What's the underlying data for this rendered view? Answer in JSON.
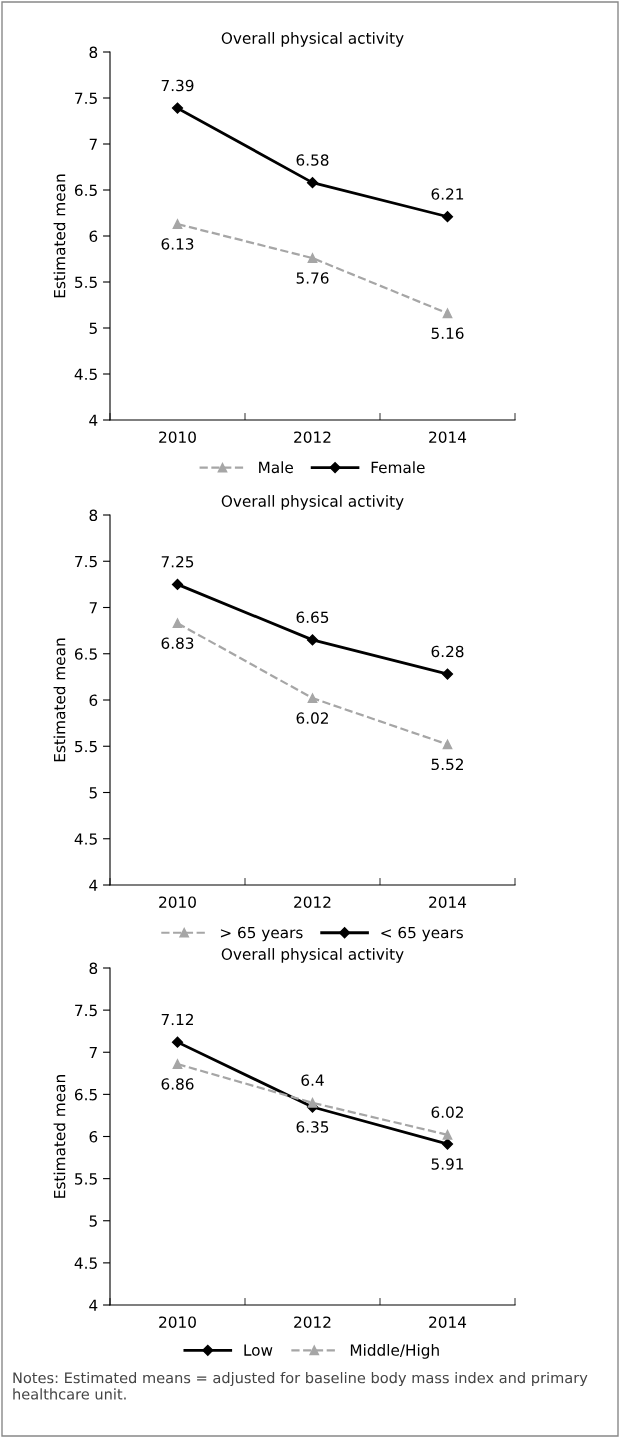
{
  "chart_data": [
    {
      "type": "line",
      "title": "Overall physical activity",
      "ylabel": "Estimated mean",
      "categories": [
        "2010",
        "2012",
        "2014"
      ],
      "ylim": [
        4,
        8
      ],
      "yticks": [
        4,
        4.5,
        5,
        5.5,
        6,
        6.5,
        7,
        7.5,
        8
      ],
      "data_labels": true,
      "legend": "bottom",
      "grid": false,
      "series": [
        {
          "name": "Male",
          "color": "#a6a6a6",
          "values": [
            6.13,
            5.76,
            5.16
          ],
          "marker": "triangle",
          "line_style": "dashed"
        },
        {
          "name": "Female",
          "color": "#000000",
          "values": [
            7.39,
            6.58,
            6.21
          ],
          "marker": "diamond",
          "line_style": "solid"
        }
      ]
    },
    {
      "type": "line",
      "title": "Overall physical activity",
      "ylabel": "Estimated mean",
      "categories": [
        "2010",
        "2012",
        "2014"
      ],
      "ylim": [
        4,
        8
      ],
      "yticks": [
        4,
        4.5,
        5,
        5.5,
        6,
        6.5,
        7,
        7.5,
        8
      ],
      "data_labels": true,
      "legend": "bottom",
      "grid": false,
      "series": [
        {
          "name": "> 65 years",
          "color": "#a6a6a6",
          "values": [
            6.83,
            6.02,
            5.52
          ],
          "marker": "triangle",
          "line_style": "dashed"
        },
        {
          "name": "< 65 years",
          "color": "#000000",
          "values": [
            7.25,
            6.65,
            6.28
          ],
          "marker": "diamond",
          "line_style": "solid"
        }
      ]
    },
    {
      "type": "line",
      "title": "Overall physical activity",
      "ylabel": "Estimated mean",
      "categories": [
        "2010",
        "2012",
        "2014"
      ],
      "ylim": [
        4,
        8
      ],
      "yticks": [
        4,
        4.5,
        5,
        5.5,
        6,
        6.5,
        7,
        7.5,
        8
      ],
      "data_labels": true,
      "legend": "bottom",
      "grid": false,
      "annotations": [
        "Notes: Estimated means = adjusted for baseline body mass index and primary healthcare unit."
      ],
      "series": [
        {
          "name": "Low",
          "color": "#000000",
          "values": [
            7.12,
            6.35,
            5.91
          ],
          "marker": "diamond",
          "line_style": "solid"
        },
        {
          "name": "Middle/High",
          "color": "#a6a6a6",
          "values": [
            6.86,
            6.4,
            6.02
          ],
          "marker": "triangle",
          "line_style": "dashed"
        }
      ]
    }
  ]
}
